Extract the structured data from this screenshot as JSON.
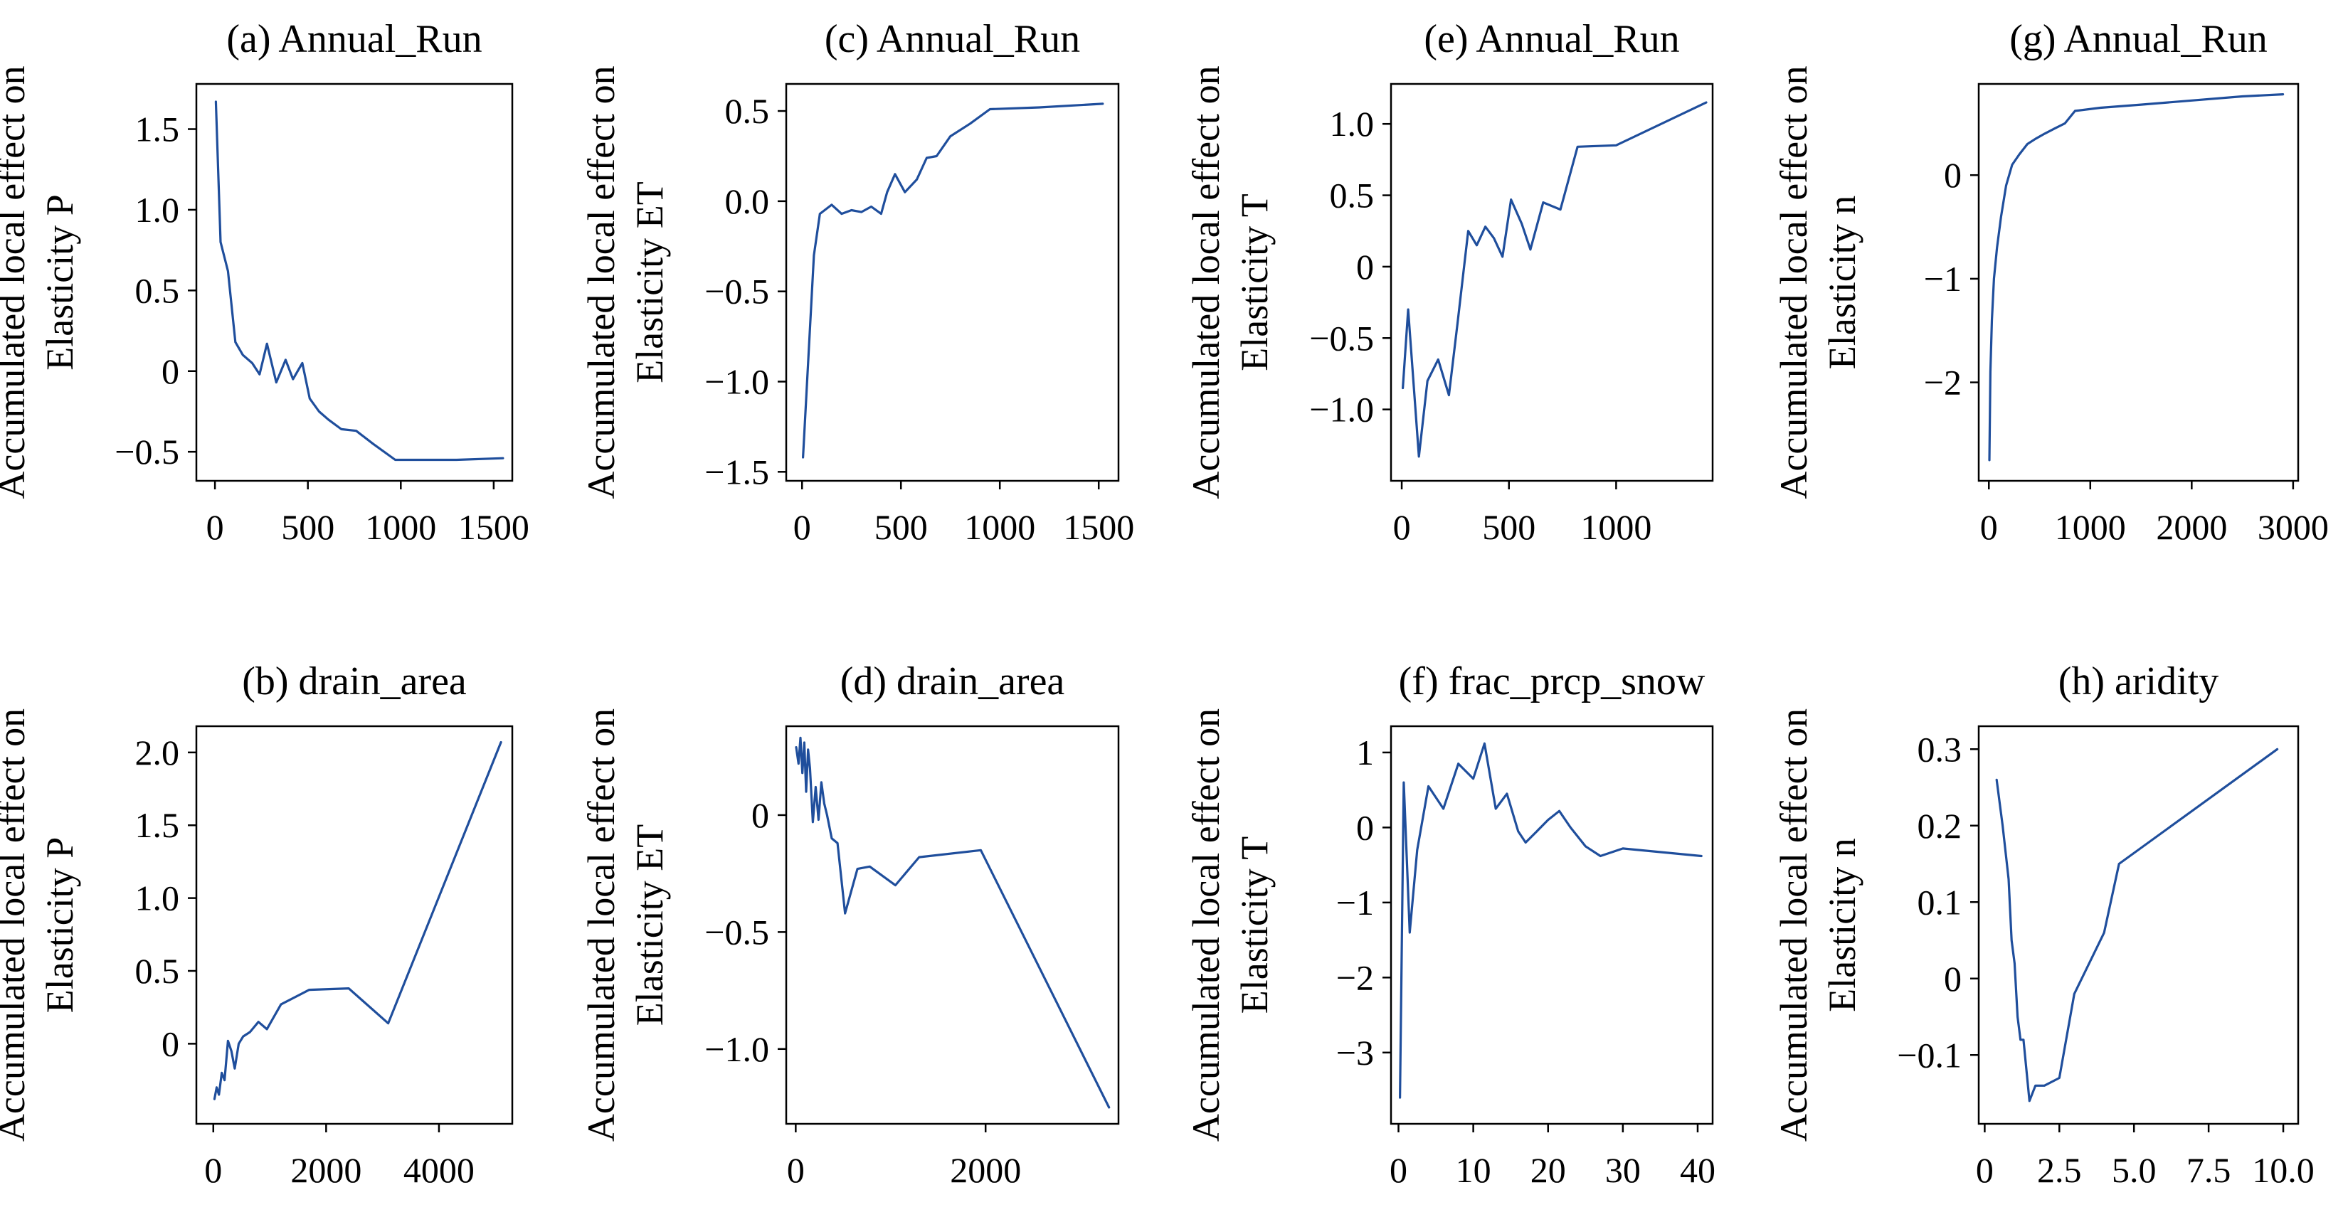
{
  "colors": {
    "line": "#1f4e9c",
    "axes": "#000000",
    "background": "#ffffff"
  },
  "chart_data": [
    {
      "type": "line",
      "title": "(a) Annual_Run",
      "ylabel": [
        "Accumulated local effect on",
        "Elasticity P"
      ],
      "xlim": [
        -100,
        1600
      ],
      "ylim": [
        -0.68,
        1.78
      ],
      "xticks": [
        0,
        500,
        1000,
        1500
      ],
      "yticks": [
        -0.5,
        0,
        0.5,
        1.0,
        1.5
      ],
      "xtick_labels": [
        "0",
        "500",
        "1000",
        "1500"
      ],
      "ytick_labels": [
        "−0.5",
        "0",
        "0.5",
        "1.0",
        "1.5"
      ],
      "x": [
        5,
        30,
        70,
        110,
        150,
        200,
        240,
        280,
        330,
        380,
        420,
        470,
        510,
        560,
        610,
        680,
        760,
        850,
        970,
        1100,
        1300,
        1550
      ],
      "y": [
        1.67,
        0.8,
        0.62,
        0.18,
        0.1,
        0.05,
        -0.02,
        0.17,
        -0.07,
        0.07,
        -0.05,
        0.05,
        -0.17,
        -0.25,
        -0.3,
        -0.36,
        -0.37,
        -0.45,
        -0.55,
        -0.55,
        -0.55,
        -0.54
      ]
    },
    {
      "type": "line",
      "title": "(b) drain_area",
      "ylabel": [
        "Accumulated local effect on",
        "Elasticity P"
      ],
      "xlim": [
        -300,
        5300
      ],
      "ylim": [
        -0.55,
        2.18
      ],
      "xticks": [
        0,
        2000,
        4000
      ],
      "yticks": [
        0,
        0.5,
        1.0,
        1.5,
        2.0
      ],
      "xtick_labels": [
        "0",
        "2000",
        "4000"
      ],
      "ytick_labels": [
        "0",
        "0.5",
        "1.0",
        "1.5",
        "2.0"
      ],
      "x": [
        20,
        60,
        100,
        150,
        200,
        260,
        320,
        380,
        450,
        530,
        650,
        800,
        950,
        1200,
        1700,
        2400,
        3100,
        5100
      ],
      "y": [
        -0.38,
        -0.3,
        -0.35,
        -0.2,
        -0.25,
        0.02,
        -0.05,
        -0.17,
        0.0,
        0.05,
        0.08,
        0.15,
        0.1,
        0.27,
        0.37,
        0.38,
        0.14,
        2.07
      ]
    },
    {
      "type": "line",
      "title": "(c) Annual_Run",
      "ylabel": [
        "Accumulated local effect on",
        "Elasticity ET"
      ],
      "xlim": [
        -80,
        1600
      ],
      "ylim": [
        -1.55,
        0.65
      ],
      "xticks": [
        0,
        500,
        1000,
        1500
      ],
      "yticks": [
        -1.5,
        -1.0,
        -0.5,
        0,
        0.5
      ],
      "xtick_labels": [
        "0",
        "500",
        "1000",
        "1500"
      ],
      "ytick_labels": [
        "−1.5",
        "−1.0",
        "−0.5",
        "0.0",
        "0.5"
      ],
      "x": [
        5,
        60,
        90,
        150,
        200,
        250,
        300,
        350,
        400,
        430,
        470,
        520,
        580,
        630,
        680,
        750,
        850,
        950,
        1200,
        1520
      ],
      "y": [
        -1.42,
        -0.3,
        -0.07,
        -0.02,
        -0.07,
        -0.05,
        -0.06,
        -0.03,
        -0.07,
        0.05,
        0.15,
        0.05,
        0.12,
        0.24,
        0.25,
        0.36,
        0.43,
        0.51,
        0.52,
        0.54
      ]
    },
    {
      "type": "line",
      "title": "(d) drain_area",
      "ylabel": [
        "Accumulated local effect on",
        "Elasticity ET"
      ],
      "xlim": [
        -100,
        3400
      ],
      "ylim": [
        -1.32,
        0.38
      ],
      "xticks": [
        0,
        2000
      ],
      "yticks": [
        -1.0,
        -0.5,
        0
      ],
      "xtick_labels": [
        "0",
        "2000"
      ],
      "ytick_labels": [
        "−1.0",
        "−0.5",
        "0"
      ],
      "x": [
        5,
        30,
        50,
        70,
        90,
        110,
        130,
        150,
        180,
        210,
        240,
        270,
        300,
        330,
        380,
        440,
        520,
        650,
        780,
        1050,
        1300,
        1950,
        3300
      ],
      "y": [
        0.29,
        0.22,
        0.33,
        0.18,
        0.31,
        0.1,
        0.28,
        0.2,
        -0.03,
        0.12,
        -0.02,
        0.14,
        0.05,
        0.0,
        -0.1,
        -0.12,
        -0.42,
        -0.23,
        -0.22,
        -0.3,
        -0.18,
        -0.15,
        -1.25
      ]
    },
    {
      "type": "line",
      "title": "(e) Annual_Run",
      "ylabel": [
        "Accumulated local effect on",
        "Elasticity T"
      ],
      "xlim": [
        -50,
        1450
      ],
      "ylim": [
        -1.5,
        1.28
      ],
      "xticks": [
        0,
        500,
        1000
      ],
      "yticks": [
        -1.0,
        -0.5,
        0,
        0.5,
        1.0
      ],
      "xtick_labels": [
        "0",
        "500",
        "1000"
      ],
      "ytick_labels": [
        "−1.0",
        "−0.5",
        "0",
        "0.5",
        "1.0"
      ],
      "x": [
        5,
        30,
        80,
        120,
        170,
        220,
        260,
        310,
        350,
        390,
        430,
        470,
        510,
        560,
        600,
        660,
        740,
        820,
        1000,
        1420
      ],
      "y": [
        -0.85,
        -0.3,
        -1.33,
        -0.8,
        -0.65,
        -0.9,
        -0.4,
        0.25,
        0.15,
        0.28,
        0.2,
        0.07,
        0.47,
        0.3,
        0.12,
        0.45,
        0.4,
        0.84,
        0.85,
        1.15
      ]
    },
    {
      "type": "line",
      "title": "(f) frac_prcp_snow",
      "ylabel": [
        "Accumulated local effect on",
        "Elasticity T"
      ],
      "xlim": [
        -1,
        42
      ],
      "ylim": [
        -3.95,
        1.35
      ],
      "xticks": [
        0,
        10,
        20,
        30,
        40
      ],
      "yticks": [
        -3,
        -2,
        -1,
        0,
        1
      ],
      "xtick_labels": [
        "0",
        "10",
        "20",
        "30",
        "40"
      ],
      "ytick_labels": [
        "−3",
        "−2",
        "−1",
        "0",
        "1"
      ],
      "x": [
        0.2,
        0.7,
        1.5,
        2.5,
        4.0,
        6.0,
        8.0,
        10.0,
        11.5,
        13.0,
        14.5,
        16.0,
        17.0,
        18.5,
        20.0,
        21.5,
        23.0,
        25.0,
        27.0,
        30.0,
        40.5
      ],
      "y": [
        -3.6,
        0.6,
        -1.4,
        -0.3,
        0.55,
        0.25,
        0.85,
        0.65,
        1.12,
        0.25,
        0.45,
        -0.05,
        -0.2,
        -0.05,
        0.1,
        0.22,
        0.0,
        -0.25,
        -0.38,
        -0.28,
        -0.38
      ]
    },
    {
      "type": "line",
      "title": "(g) Annual_Run",
      "ylabel": [
        "Accumulated local effect on",
        "Elasticity n"
      ],
      "xlim": [
        -100,
        3050
      ],
      "ylim": [
        -2.95,
        0.88
      ],
      "xticks": [
        0,
        1000,
        2000,
        3000
      ],
      "yticks": [
        -2,
        -1,
        0
      ],
      "xtick_labels": [
        "0",
        "1000",
        "2000",
        "3000"
      ],
      "ytick_labels": [
        "−2",
        "−1",
        "0"
      ],
      "x": [
        5,
        15,
        30,
        50,
        80,
        120,
        170,
        230,
        300,
        380,
        460,
        550,
        650,
        750,
        850,
        1100,
        1500,
        2000,
        2500,
        2900
      ],
      "y": [
        -2.75,
        -1.9,
        -1.4,
        -1.0,
        -0.7,
        -0.4,
        -0.1,
        0.1,
        0.2,
        0.3,
        0.35,
        0.4,
        0.45,
        0.5,
        0.62,
        0.65,
        0.68,
        0.72,
        0.76,
        0.78
      ]
    },
    {
      "type": "line",
      "title": "(h) aridity",
      "ylabel": [
        "Accumulated local effect on",
        "Elasticity n"
      ],
      "xlim": [
        -0.2,
        10.5
      ],
      "ylim": [
        -0.19,
        0.33
      ],
      "xticks": [
        0,
        2.5,
        5.0,
        7.5,
        10.0
      ],
      "yticks": [
        -0.1,
        0,
        0.1,
        0.2,
        0.3
      ],
      "xtick_labels": [
        "0",
        "2.5",
        "5.0",
        "7.5",
        "10.0"
      ],
      "ytick_labels": [
        "−0.1",
        "0",
        "0.1",
        "0.2",
        "0.3"
      ],
      "x": [
        0.4,
        0.6,
        0.8,
        0.9,
        1.0,
        1.1,
        1.2,
        1.3,
        1.5,
        1.7,
        2.0,
        2.5,
        3.0,
        4.0,
        4.5,
        9.8
      ],
      "y": [
        0.26,
        0.2,
        0.13,
        0.05,
        0.02,
        -0.05,
        -0.08,
        -0.08,
        -0.16,
        -0.14,
        -0.14,
        -0.13,
        -0.02,
        0.06,
        0.15,
        0.3
      ]
    }
  ]
}
